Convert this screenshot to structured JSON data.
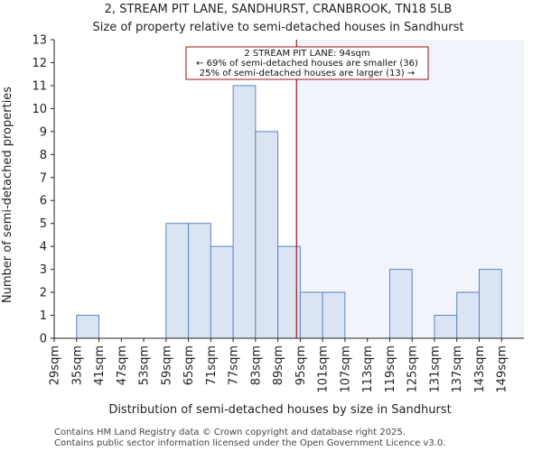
{
  "chart_data": {
    "type": "bar",
    "title": "2, STREAM PIT LANE, SANDHURST, CRANBROOK, TN18 5LB",
    "subtitle": "Size of property relative to semi-detached houses in Sandhurst",
    "xlabel": "Distribution of semi-detached houses by size in Sandhurst",
    "ylabel": "Number of semi-detached properties",
    "categories": [
      "29sqm",
      "35sqm",
      "41sqm",
      "47sqm",
      "53sqm",
      "59sqm",
      "65sqm",
      "71sqm",
      "77sqm",
      "83sqm",
      "89sqm",
      "95sqm",
      "101sqm",
      "107sqm",
      "113sqm",
      "119sqm",
      "125sqm",
      "131sqm",
      "137sqm",
      "143sqm",
      "149sqm"
    ],
    "bin_edges": [
      29,
      35,
      41,
      47,
      53,
      59,
      65,
      71,
      77,
      83,
      89,
      95,
      101,
      107,
      113,
      119,
      125,
      131,
      137,
      143,
      149,
      155
    ],
    "values": [
      0,
      1,
      0,
      0,
      0,
      5,
      5,
      4,
      11,
      9,
      4,
      2,
      2,
      0,
      0,
      3,
      0,
      1,
      2,
      3,
      0
    ],
    "ylim": [
      0,
      13
    ],
    "yticks": [
      0,
      1,
      2,
      3,
      4,
      5,
      6,
      7,
      8,
      9,
      10,
      11,
      12,
      13
    ],
    "property_size": 94,
    "annotation": {
      "line1": "2 STREAM PIT LANE: 94sqm",
      "line2": "← 69% of semi-detached houses are smaller (36)",
      "line3": "25% of semi-detached houses are larger (13) →"
    },
    "colors": {
      "bar_fill": "#dae4f3",
      "bar_edge": "#5b85c4",
      "marker_line": "#a01010",
      "shade": "#f1f4fb"
    }
  },
  "footer": {
    "line1": "Contains HM Land Registry data © Crown copyright and database right 2025.",
    "line2": "Contains public sector information licensed under the Open Government Licence v3.0."
  }
}
